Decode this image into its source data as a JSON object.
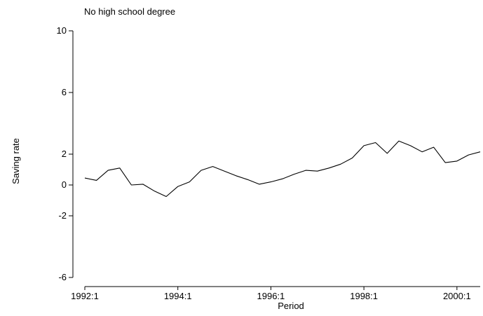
{
  "chart_data": {
    "type": "line",
    "title": "No high school degree",
    "xlabel": "Period",
    "ylabel": "Saving rate",
    "x_tick_labels": [
      "1992:1",
      "1994:1",
      "1996:1",
      "1998:1",
      "2000:1"
    ],
    "y_tick_values": [
      -6,
      -2,
      0,
      2,
      6,
      10
    ],
    "y_tick_labels": [
      "-6",
      "-2",
      "0",
      "2",
      "6",
      "10"
    ],
    "ylim": [
      -6.5,
      10.5
    ],
    "grid": false,
    "legend": "none",
    "line_color": "#000000",
    "series": [
      {
        "x": [
          "1992:1",
          "1992:2",
          "1992:3",
          "1992:4",
          "1993:1",
          "1993:2",
          "1993:3",
          "1993:4",
          "1994:1",
          "1994:2",
          "1994:3",
          "1994:4",
          "1995:1",
          "1995:2",
          "1995:3",
          "1995:4",
          "1996:1",
          "1996:2",
          "1996:3",
          "1996:4",
          "1997:1",
          "1997:2",
          "1997:3",
          "1997:4",
          "1998:1",
          "1998:2",
          "1998:3",
          "1998:4",
          "1999:1",
          "1999:2",
          "1999:3",
          "1999:4",
          "2000:1",
          "2000:2",
          "2000:3"
        ],
        "values": [
          0.45,
          0.3,
          0.95,
          1.1,
          0.0,
          0.05,
          -0.4,
          -0.75,
          -0.1,
          0.2,
          0.95,
          1.2,
          0.9,
          0.6,
          0.35,
          0.05,
          0.2,
          0.4,
          0.7,
          0.95,
          0.9,
          1.1,
          1.35,
          1.75,
          2.55,
          2.75,
          2.05,
          2.85,
          2.55,
          2.15,
          2.45,
          1.45,
          1.55,
          1.95,
          2.15
        ]
      }
    ]
  }
}
